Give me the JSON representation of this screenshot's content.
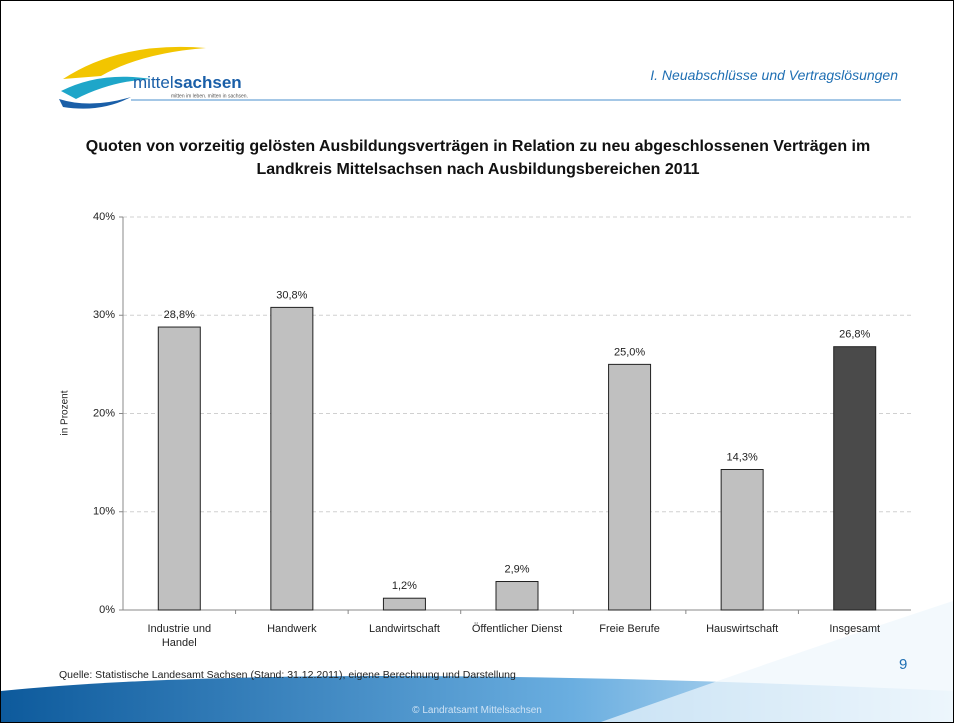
{
  "header": {
    "logo_text_a": "mittel",
    "logo_text_b": "sachsen",
    "logo_tagline": "mitten im leben. mitten in sachsen.",
    "section": "I. Neuabschlüsse und Vertragslösungen"
  },
  "chart_data": {
    "type": "bar",
    "title": "Quoten von vorzeitig gelösten Ausbildungsverträgen in Relation zu neu abgeschlossenen Verträgen im Landkreis Mittelsachsen nach Ausbildungsbereichen 2011",
    "y_label": "in Prozent",
    "categories": [
      "Industrie und Handel",
      "Handwerk",
      "Landwirtschaft",
      "Öffentlicher Dienst",
      "Freie Berufe",
      "Hauswirtschaft",
      "Insgesamt"
    ],
    "values": [
      28.8,
      30.8,
      1.2,
      2.9,
      25.0,
      14.3,
      26.8
    ],
    "value_labels": [
      "28,8%",
      "30,8%",
      "1,2%",
      "2,9%",
      "25,0%",
      "14,3%",
      "26,8%"
    ],
    "colors": [
      "#c0c0c0",
      "#c0c0c0",
      "#c0c0c0",
      "#c0c0c0",
      "#c0c0c0",
      "#c0c0c0",
      "#4a4a4a"
    ],
    "ylim": [
      0,
      40
    ],
    "yticks": [
      {
        "value": 0,
        "label": "0%"
      },
      {
        "value": 10,
        "label": "10%"
      },
      {
        "value": 20,
        "label": "20%"
      },
      {
        "value": 30,
        "label": "30%"
      },
      {
        "value": 40,
        "label": "40%"
      }
    ],
    "grid": true
  },
  "footer": {
    "source": "Quelle: Statistische Landesamt Sachsen (Stand: 31.12.2011), eigene Berechnung und Darstellung",
    "page": "9",
    "copyright": "© Landratsamt Mittelsachsen"
  }
}
